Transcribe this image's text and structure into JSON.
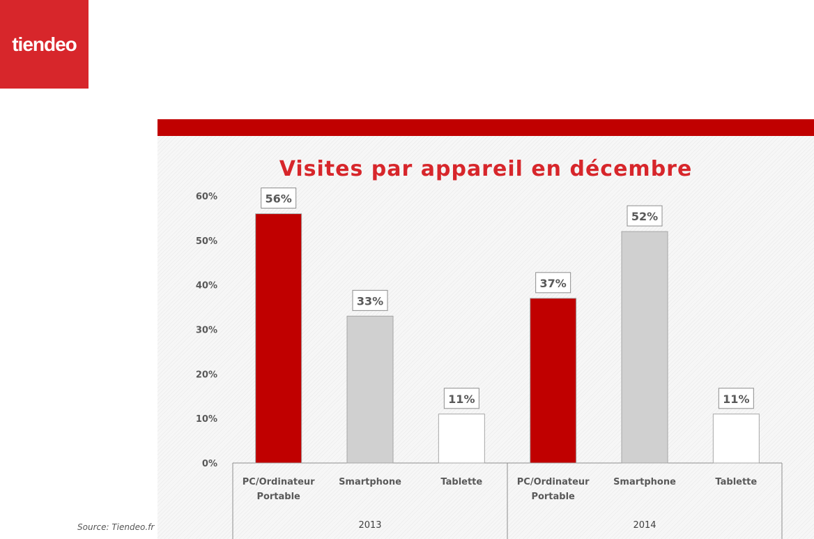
{
  "brand": {
    "logo_text": "tiendeo",
    "logo_color": "#d7262b"
  },
  "colors": {
    "accent": "#c00000",
    "gray": "#d0d0d0",
    "white": "#ffffff"
  },
  "source": "Source: Tiendeo.fr",
  "chart_data": {
    "type": "bar",
    "title": "Visites par appareil en décembre",
    "groups": [
      {
        "label": "2013",
        "bars": [
          {
            "category": "PC/Ordinateur Portable",
            "label_lines": [
              "PC/Ordinateur",
              "Portable"
            ],
            "value": 56,
            "data_label": "56%",
            "color": "#c00000"
          },
          {
            "category": "Smartphone",
            "label_lines": [
              "Smartphone"
            ],
            "value": 33,
            "data_label": "33%",
            "color": "#d0d0d0"
          },
          {
            "category": "Tablette",
            "label_lines": [
              "Tablette"
            ],
            "value": 11,
            "data_label": "11%",
            "color": "#ffffff"
          }
        ]
      },
      {
        "label": "2014",
        "bars": [
          {
            "category": "PC/Ordinateur Portable",
            "label_lines": [
              "PC/Ordinateur",
              "Portable"
            ],
            "value": 37,
            "data_label": "37%",
            "color": "#c00000"
          },
          {
            "category": "Smartphone",
            "label_lines": [
              "Smartphone"
            ],
            "value": 52,
            "data_label": "52%",
            "color": "#d0d0d0"
          },
          {
            "category": "Tablette",
            "label_lines": [
              "Tablette"
            ],
            "value": 11,
            "data_label": "11%",
            "color": "#ffffff"
          }
        ]
      }
    ],
    "ylim": [
      0,
      60
    ],
    "yticks": [
      "0%",
      "10%",
      "20%",
      "30%",
      "40%",
      "50%",
      "60%"
    ],
    "grid": false,
    "legend": "none"
  }
}
